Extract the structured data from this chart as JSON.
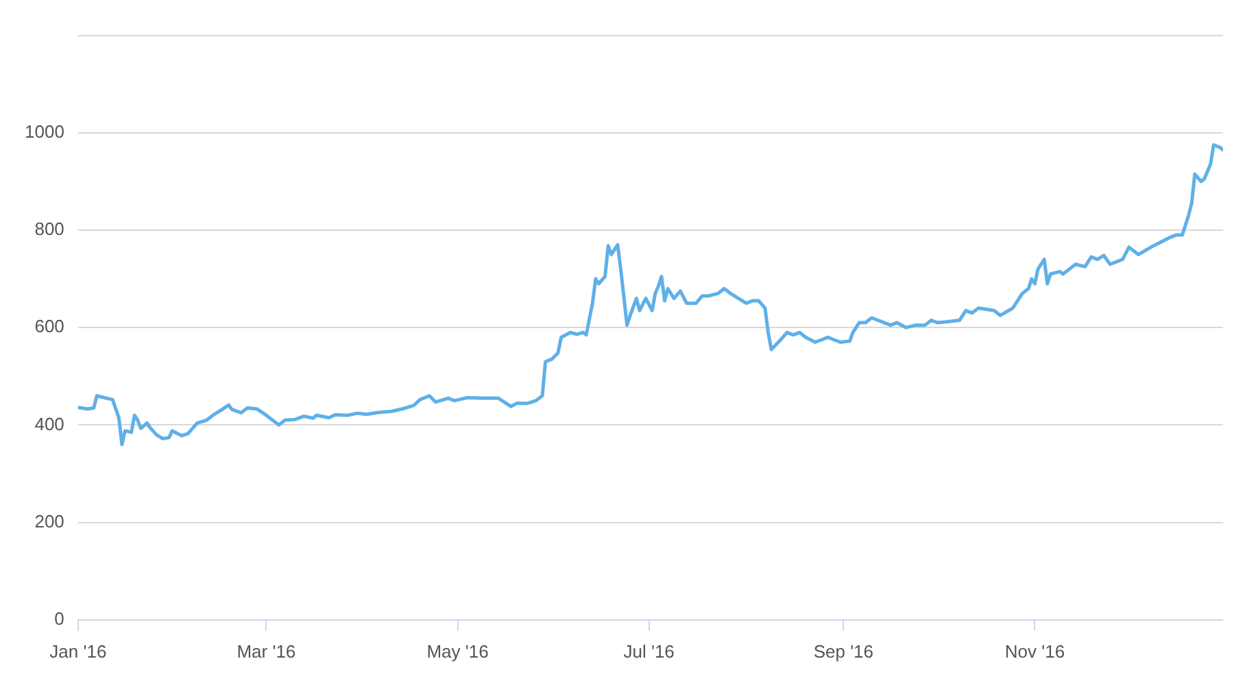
{
  "chart_data": {
    "type": "line",
    "x": [
      "2016-01-01",
      "2016-01-04",
      "2016-01-06",
      "2016-01-07",
      "2016-01-10",
      "2016-01-12",
      "2016-01-14",
      "2016-01-15",
      "2016-01-16",
      "2016-01-18",
      "2016-01-19",
      "2016-01-20",
      "2016-01-21",
      "2016-01-23",
      "2016-01-24",
      "2016-01-26",
      "2016-01-28",
      "2016-01-30",
      "2016-01-31",
      "2016-02-03",
      "2016-02-05",
      "2016-02-08",
      "2016-02-11",
      "2016-02-13",
      "2016-02-16",
      "2016-02-18",
      "2016-02-19",
      "2016-02-22",
      "2016-02-24",
      "2016-02-27",
      "2016-03-01",
      "2016-03-05",
      "2016-03-07",
      "2016-03-10",
      "2016-03-13",
      "2016-03-16",
      "2016-03-17",
      "2016-03-21",
      "2016-03-23",
      "2016-03-27",
      "2016-03-30",
      "2016-04-02",
      "2016-04-06",
      "2016-04-10",
      "2016-04-14",
      "2016-04-17",
      "2016-04-19",
      "2016-04-22",
      "2016-04-24",
      "2016-04-28",
      "2016-04-30",
      "2016-05-04",
      "2016-05-09",
      "2016-05-14",
      "2016-05-18",
      "2016-05-20",
      "2016-05-23",
      "2016-05-26",
      "2016-05-28",
      "2016-05-29",
      "2016-05-31",
      "2016-06-02",
      "2016-06-03",
      "2016-06-06",
      "2016-06-08",
      "2016-06-10",
      "2016-06-11",
      "2016-06-13",
      "2016-06-14",
      "2016-06-15",
      "2016-06-17",
      "2016-06-18",
      "2016-06-19",
      "2016-06-21",
      "2016-06-22",
      "2016-06-24",
      "2016-06-25",
      "2016-06-27",
      "2016-06-28",
      "2016-06-30",
      "2016-07-02",
      "2016-07-03",
      "2016-07-04",
      "2016-07-05",
      "2016-07-06",
      "2016-07-07",
      "2016-07-09",
      "2016-07-11",
      "2016-07-13",
      "2016-07-16",
      "2016-07-18",
      "2016-07-20",
      "2016-07-23",
      "2016-07-25",
      "2016-07-27",
      "2016-07-29",
      "2016-08-01",
      "2016-08-03",
      "2016-08-05",
      "2016-08-07",
      "2016-08-08",
      "2016-08-09",
      "2016-08-12",
      "2016-08-14",
      "2016-08-16",
      "2016-08-18",
      "2016-08-20",
      "2016-08-23",
      "2016-08-25",
      "2016-08-27",
      "2016-08-29",
      "2016-08-31",
      "2016-09-03",
      "2016-09-04",
      "2016-09-06",
      "2016-09-08",
      "2016-09-10",
      "2016-09-12",
      "2016-09-16",
      "2016-09-18",
      "2016-09-21",
      "2016-09-24",
      "2016-09-27",
      "2016-09-29",
      "2016-10-01",
      "2016-10-04",
      "2016-10-08",
      "2016-10-10",
      "2016-10-12",
      "2016-10-14",
      "2016-10-19",
      "2016-10-21",
      "2016-10-25",
      "2016-10-28",
      "2016-10-30",
      "2016-10-31",
      "2016-11-01",
      "2016-11-02",
      "2016-11-04",
      "2016-11-05",
      "2016-11-06",
      "2016-11-09",
      "2016-11-10",
      "2016-11-12",
      "2016-11-14",
      "2016-11-17",
      "2016-11-19",
      "2016-11-21",
      "2016-11-23",
      "2016-11-25",
      "2016-11-29",
      "2016-12-01",
      "2016-12-02",
      "2016-12-04",
      "2016-12-08",
      "2016-12-11",
      "2016-12-14",
      "2016-12-16",
      "2016-12-18",
      "2016-12-20",
      "2016-12-21",
      "2016-12-22",
      "2016-12-24",
      "2016-12-25",
      "2016-12-27",
      "2016-12-28",
      "2016-12-30",
      "2016-12-31"
    ],
    "series": [
      {
        "color": "#5fb0e6",
        "values": [
          436,
          433,
          435,
          460,
          455,
          452,
          415,
          360,
          388,
          385,
          420,
          410,
          393,
          404,
          394,
          380,
          372,
          374,
          388,
          378,
          382,
          404,
          410,
          420,
          432,
          441,
          432,
          425,
          435,
          433,
          420,
          400,
          410,
          411,
          418,
          414,
          420,
          415,
          421,
          420,
          424,
          422,
          426,
          428,
          434,
          440,
          452,
          460,
          447,
          455,
          450,
          456,
          455,
          455,
          438,
          445,
          444,
          450,
          460,
          530,
          535,
          548,
          580,
          590,
          586,
          590,
          585,
          650,
          700,
          690,
          705,
          768,
          750,
          770,
          720,
          605,
          625,
          660,
          635,
          660,
          635,
          670,
          685,
          705,
          655,
          680,
          660,
          675,
          650,
          650,
          665,
          665,
          670,
          680,
          670,
          662,
          650,
          655,
          655,
          640,
          590,
          555,
          575,
          590,
          585,
          590,
          580,
          570,
          575,
          580,
          575,
          570,
          572,
          590,
          610,
          610,
          620,
          615,
          605,
          610,
          600,
          605,
          605,
          615,
          610,
          612,
          615,
          635,
          630,
          640,
          635,
          625,
          640,
          670,
          680,
          700,
          690,
          720,
          740,
          690,
          710,
          715,
          710,
          720,
          730,
          725,
          745,
          740,
          748,
          730,
          740,
          765,
          760,
          750,
          765,
          775,
          785,
          790,
          790,
          830,
          855,
          915,
          900,
          905,
          935,
          975,
          970,
          965
        ]
      }
    ],
    "xlim": [
      "2016-01-01",
      "2016-12-31"
    ],
    "xticks": [
      {
        "value": "2016-01-01",
        "label": "Jan '16"
      },
      {
        "value": "2016-03-01",
        "label": "Mar '16"
      },
      {
        "value": "2016-05-01",
        "label": "May '16"
      },
      {
        "value": "2016-07-01",
        "label": "Jul '16"
      },
      {
        "value": "2016-09-01",
        "label": "Sep '16"
      },
      {
        "value": "2016-11-01",
        "label": "Nov '16"
      }
    ],
    "ylim": [
      0,
      1200
    ],
    "yticks": [
      0,
      200,
      400,
      600,
      800,
      1000,
      {
        "value": 1200,
        "label": null
      }
    ],
    "grid": "y",
    "legend": false,
    "marker": "none",
    "line_style": "solid"
  }
}
